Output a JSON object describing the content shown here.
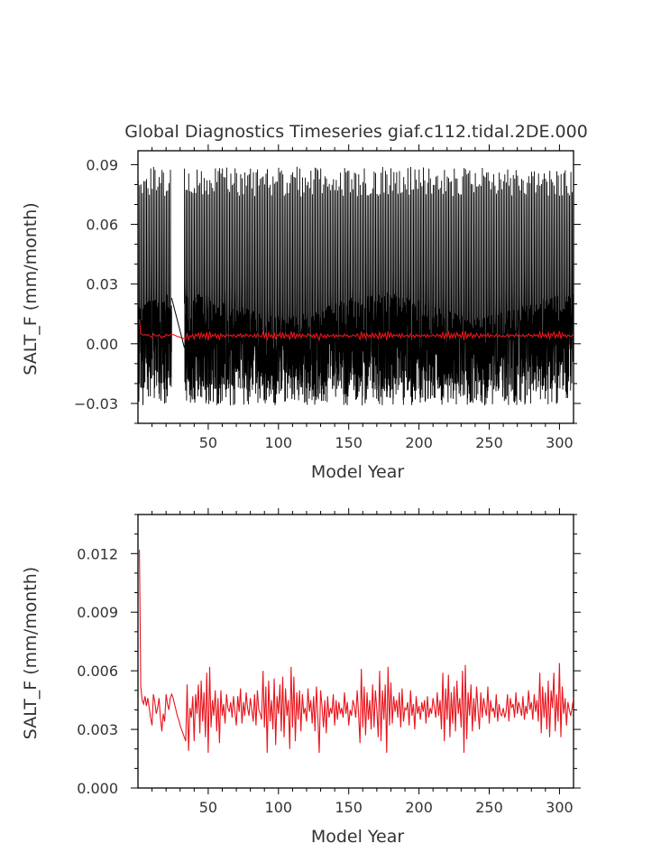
{
  "title": "Global Diagnostics Timeseries giaf.c112.tidal.2DE.000",
  "colors": {
    "raw": "#000000",
    "annual": "#e8141c",
    "axis": "#000000",
    "text": "#333333"
  },
  "chart_data": [
    {
      "type": "line",
      "ylabel": "SALT_F (mm/month)",
      "xlabel": "Model Year",
      "xlim": [
        0,
        310
      ],
      "ylim": [
        -0.04,
        0.097
      ],
      "xticks": [
        50,
        100,
        150,
        200,
        250,
        300
      ],
      "xtick_labels": [
        "50",
        "100",
        "150",
        "200",
        "250",
        "300"
      ],
      "yticks": [
        -0.03,
        0.0,
        0.03,
        0.06,
        0.09
      ],
      "ytick_labels": [
        "−0.03",
        "0.00",
        "0.03",
        "0.06",
        "0.09"
      ],
      "gaps": [
        [
          24,
          33
        ]
      ],
      "series": [
        {
          "key": "monthly",
          "color": "#000000",
          "peak_range": [
            0.07,
            0.089
          ],
          "typical_range": [
            -0.03,
            0.025
          ]
        },
        {
          "key": "annual",
          "color": "#e8141c",
          "values_ref": "annual_mean"
        }
      ]
    },
    {
      "type": "line",
      "ylabel": "SALT_F (mm/month)",
      "xlabel": "Model Year",
      "xlim": [
        0,
        310
      ],
      "ylim": [
        0.0,
        0.014
      ],
      "xticks": [
        50,
        100,
        150,
        200,
        250,
        300
      ],
      "xtick_labels": [
        "50",
        "100",
        "150",
        "200",
        "250",
        "300"
      ],
      "yticks": [
        0.0,
        0.003,
        0.006,
        0.009,
        0.012
      ],
      "ytick_labels": [
        "0.000",
        "0.003",
        "0.006",
        "0.009",
        "0.012"
      ],
      "series": [
        {
          "key": "annual",
          "color": "#e8141c",
          "x": [
            1,
            2,
            3,
            4,
            5,
            6,
            7,
            8,
            9,
            10,
            11,
            12,
            13,
            14,
            15,
            16,
            17,
            18,
            19,
            20,
            21,
            22,
            23,
            24,
            25,
            26,
            27,
            28,
            29,
            30,
            31,
            32,
            33,
            34,
            35,
            36,
            37,
            38,
            39,
            40,
            41,
            42,
            43,
            44,
            45,
            46,
            47,
            48,
            49,
            50,
            51,
            52,
            53,
            54,
            55,
            56,
            57,
            58,
            59,
            60,
            61,
            62,
            63,
            64,
            65,
            66,
            67,
            68,
            69,
            70,
            71,
            72,
            73,
            74,
            75,
            76,
            77,
            78,
            79,
            80,
            81,
            82,
            83,
            84,
            85,
            86,
            87,
            88,
            89,
            90,
            91,
            92,
            93,
            94,
            95,
            96,
            97,
            98,
            99,
            100,
            101,
            102,
            103,
            104,
            105,
            106,
            107,
            108,
            109,
            110,
            111,
            112,
            113,
            114,
            115,
            116,
            117,
            118,
            119,
            120,
            121,
            122,
            123,
            124,
            125,
            126,
            127,
            128,
            129,
            130,
            131,
            132,
            133,
            134,
            135,
            136,
            137,
            138,
            139,
            140,
            141,
            142,
            143,
            144,
            145,
            146,
            147,
            148,
            149,
            150,
            151,
            152,
            153,
            154,
            155,
            156,
            157,
            158,
            159,
            160,
            161,
            162,
            163,
            164,
            165,
            166,
            167,
            168,
            169,
            170,
            171,
            172,
            173,
            174,
            175,
            176,
            177,
            178,
            179,
            180,
            181,
            182,
            183,
            184,
            185,
            186,
            187,
            188,
            189,
            190,
            191,
            192,
            193,
            194,
            195,
            196,
            197,
            198,
            199,
            200,
            201,
            202,
            203,
            204,
            205,
            206,
            207,
            208,
            209,
            210,
            211,
            212,
            213,
            214,
            215,
            216,
            217,
            218,
            219,
            220,
            221,
            222,
            223,
            224,
            225,
            226,
            227,
            228,
            229,
            230,
            231,
            232,
            233,
            234,
            235,
            236,
            237,
            238,
            239,
            240,
            241,
            242,
            243,
            244,
            245,
            246,
            247,
            248,
            249,
            250,
            251,
            252,
            253,
            254,
            255,
            256,
            257,
            258,
            259,
            260,
            261,
            262,
            263,
            264,
            265,
            266,
            267,
            268,
            269,
            270,
            271,
            272,
            273,
            274,
            275,
            276,
            277,
            278,
            279,
            280,
            281,
            282,
            283,
            284,
            285,
            286,
            287,
            288,
            289,
            290,
            291,
            292,
            293,
            294,
            295,
            296,
            297,
            298,
            299,
            300,
            301,
            302,
            303,
            304,
            305,
            306,
            307,
            308,
            309,
            310
          ],
          "values": [
            0.0122,
            0.0052,
            0.0045,
            0.0043,
            0.0047,
            0.0042,
            0.0046,
            0.0041,
            0.0036,
            0.0032,
            0.0048,
            0.0044,
            0.0038,
            0.0041,
            0.0046,
            0.0036,
            0.0029,
            0.0038,
            0.0034,
            0.0048,
            0.0043,
            0.004,
            0.0046,
            0.0048,
            0.0046,
            0.0043,
            0.004,
            0.0037,
            0.0035,
            0.0032,
            0.003,
            0.0028,
            0.0026,
            0.0024,
            0.0053,
            0.0019,
            0.0041,
            0.0036,
            0.0047,
            0.0024,
            0.0048,
            0.0038,
            0.0053,
            0.0028,
            0.0055,
            0.0034,
            0.0049,
            0.0026,
            0.0059,
            0.0018,
            0.0062,
            0.0031,
            0.0045,
            0.0037,
            0.005,
            0.0029,
            0.0046,
            0.0023,
            0.005,
            0.0037,
            0.0043,
            0.0033,
            0.0048,
            0.0041,
            0.0039,
            0.0044,
            0.0036,
            0.0047,
            0.0039,
            0.0032,
            0.0047,
            0.0039,
            0.0051,
            0.0033,
            0.0044,
            0.0037,
            0.0049,
            0.0041,
            0.0037,
            0.0046,
            0.004,
            0.0034,
            0.0048,
            0.0032,
            0.005,
            0.004,
            0.0038,
            0.0035,
            0.006,
            0.0031,
            0.0052,
            0.0018,
            0.0055,
            0.0034,
            0.0045,
            0.003,
            0.0056,
            0.0022,
            0.0047,
            0.0038,
            0.0053,
            0.0029,
            0.0057,
            0.0026,
            0.0051,
            0.0037,
            0.0045,
            0.002,
            0.0062,
            0.0031,
            0.0057,
            0.0024,
            0.0049,
            0.0035,
            0.005,
            0.0029,
            0.0048,
            0.0038,
            0.0041,
            0.0034,
            0.0051,
            0.0039,
            0.0045,
            0.0033,
            0.0047,
            0.0029,
            0.0052,
            0.0037,
            0.0018,
            0.005,
            0.0042,
            0.0031,
            0.0045,
            0.0028,
            0.0047,
            0.0036,
            0.0041,
            0.0038,
            0.0048,
            0.0032,
            0.0045,
            0.0035,
            0.0044,
            0.0038,
            0.0041,
            0.0036,
            0.0049,
            0.0038,
            0.0044,
            0.0032,
            0.004,
            0.0037,
            0.0045,
            0.0042,
            0.0036,
            0.005,
            0.0038,
            0.0023,
            0.0061,
            0.0031,
            0.0052,
            0.0027,
            0.0049,
            0.0035,
            0.0045,
            0.003,
            0.0053,
            0.0031,
            0.005,
            0.004,
            0.0026,
            0.006,
            0.0024,
            0.005,
            0.0035,
            0.0053,
            0.0018,
            0.0062,
            0.0032,
            0.0054,
            0.0033,
            0.0047,
            0.0039,
            0.0045,
            0.0036,
            0.0049,
            0.0031,
            0.0051,
            0.0034,
            0.0041,
            0.004,
            0.0044,
            0.0032,
            0.005,
            0.0037,
            0.0043,
            0.003,
            0.0047,
            0.0038,
            0.0042,
            0.0035,
            0.0044,
            0.0039,
            0.0045,
            0.0033,
            0.0047,
            0.0036,
            0.0041,
            0.0038,
            0.0046,
            0.0041,
            0.0036,
            0.0049,
            0.0037,
            0.0045,
            0.003,
            0.0059,
            0.0024,
            0.0051,
            0.0035,
            0.0058,
            0.0026,
            0.0049,
            0.0033,
            0.0052,
            0.0029,
            0.0055,
            0.0038,
            0.0046,
            0.0031,
            0.006,
            0.0018,
            0.0063,
            0.0025,
            0.0049,
            0.0037,
            0.0053,
            0.0029,
            0.0046,
            0.0034,
            0.0052,
            0.004,
            0.003,
            0.0049,
            0.0036,
            0.0046,
            0.0041,
            0.0037,
            0.0052,
            0.0033,
            0.0045,
            0.0039,
            0.0041,
            0.0036,
            0.0048,
            0.0034,
            0.0043,
            0.0038,
            0.0037,
            0.0041,
            0.0036,
            0.0039,
            0.0048,
            0.0034,
            0.0046,
            0.0041,
            0.0043,
            0.0036,
            0.0049,
            0.0038,
            0.0044,
            0.0041,
            0.0037,
            0.0047,
            0.0035,
            0.0042,
            0.0038,
            0.005,
            0.004,
            0.0044,
            0.0035,
            0.0048,
            0.0039,
            0.0045,
            0.0034,
            0.0059,
            0.0028,
            0.0052,
            0.0036,
            0.0049,
            0.003,
            0.0055,
            0.0026,
            0.005,
            0.0041,
            0.0059,
            0.0029,
            0.0048,
            0.0034,
            0.0064,
            0.0026,
            0.0052,
            0.0038,
            0.0046,
            0.0032,
            0.0044,
            0.004,
            0.0037,
            0.0041,
            0.0046
          ]
        }
      ]
    }
  ]
}
